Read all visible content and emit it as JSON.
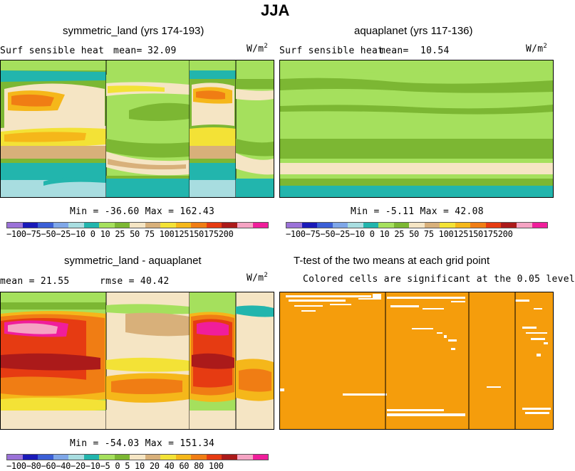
{
  "figure": {
    "season": "JJA"
  },
  "panels": {
    "top_left": {
      "title": "symmetric_land (yrs 174-193)",
      "variable": "Surf sensible heat",
      "mean_label": "mean=",
      "mean_value": "32.09",
      "units": "W/m",
      "units_exp": "2",
      "minmax": "Min = -36.60 Max = 162.43"
    },
    "top_right": {
      "title": "aquaplanet (yrs 117-136)",
      "variable": "Surf sensible heat",
      "mean_label": "mean=",
      "mean_value": "10.54",
      "units": "W/m",
      "units_exp": "2",
      "minmax": "Min = -5.11 Max = 42.08"
    },
    "bottom_left": {
      "title": "symmetric_land - aquaplanet",
      "mean_text": "mean = 21.55",
      "rmse_text": "rmse = 40.42",
      "units": "W/m",
      "units_exp": "2",
      "minmax": "Min = -54.03 Max = 151.34"
    },
    "bottom_right": {
      "title": "T-test of the two means at each grid point",
      "subtitle": "Colored cells are significant at the 0.05 level"
    }
  },
  "colorbars": {
    "field_colors": [
      "#9b72d8",
      "#1a1ab8",
      "#3b5fd6",
      "#7fa7e8",
      "#a8dde0",
      "#22b5ad",
      "#a5e05d",
      "#7cb733",
      "#f5e5c4",
      "#d8b07a",
      "#f3e236",
      "#f5b71a",
      "#f07d14",
      "#e63b12",
      "#ab1a1a",
      "#f5a3c3",
      "#f01e9b"
    ],
    "field_labels": [
      "-100",
      "-75",
      "-50",
      "-25",
      "-10",
      "0",
      "10",
      "25",
      "50",
      "75",
      "100",
      "125",
      "150",
      "175",
      "200"
    ],
    "field_labels_text": "−100−75−50−25−10 0  10  25  50  75 100125150175200",
    "diff_colors": [
      "#9b72d8",
      "#1a1ab8",
      "#3b5fd6",
      "#7fa7e8",
      "#a8dde0",
      "#22b5ad",
      "#a5e05d",
      "#7cb733",
      "#f5e5c4",
      "#d8b07a",
      "#f3e236",
      "#f5b71a",
      "#f07d14",
      "#e63b12",
      "#ab1a1a",
      "#f5a3c3",
      "#f01e9b"
    ],
    "diff_labels": [
      "-100",
      "-80",
      "-60",
      "-40",
      "-20",
      "-10",
      "-5",
      "0",
      "5",
      "10",
      "20",
      "40",
      "60",
      "80",
      "100"
    ],
    "diff_labels_text": "−100−80−60−40−20−10−5  0   5  10  20  40  60  80 100"
  },
  "colors": {
    "sig": "#f59d0c",
    "green_light": "#a5e05d",
    "green_dark": "#7cb733",
    "teal": "#22b5ad",
    "cyan_light": "#a8dde0",
    "beige": "#f5e5c4",
    "tan": "#d8b07a",
    "yellow": "#f3e236",
    "orange": "#f5b71a",
    "orange_dark": "#f07d14",
    "red": "#e63b12",
    "darkred": "#ab1a1a",
    "pink": "#f5a3c3",
    "magenta": "#f01e9b"
  },
  "chart_data": [
    {
      "type": "heatmap",
      "title": "symmetric_land (yrs 174-193)",
      "variable": "Surf sensible heat",
      "units": "W/m2",
      "mean": 32.09,
      "min": -36.6,
      "max": 162.43,
      "levels": [
        -100,
        -75,
        -50,
        -25,
        -10,
        0,
        10,
        25,
        50,
        75,
        100,
        125,
        150,
        175,
        200
      ]
    },
    {
      "type": "heatmap",
      "title": "aquaplanet (yrs 117-136)",
      "variable": "Surf sensible heat",
      "units": "W/m2",
      "mean": 10.54,
      "min": -5.11,
      "max": 42.08,
      "levels": [
        -100,
        -75,
        -50,
        -25,
        -10,
        0,
        10,
        25,
        50,
        75,
        100,
        125,
        150,
        175,
        200
      ]
    },
    {
      "type": "heatmap",
      "title": "symmetric_land - aquaplanet",
      "units": "W/m2",
      "mean": 21.55,
      "rmse": 40.42,
      "min": -54.03,
      "max": 151.34,
      "levels": [
        -100,
        -80,
        -60,
        -40,
        -20,
        -10,
        -5,
        0,
        5,
        10,
        20,
        40,
        60,
        80,
        100
      ]
    },
    {
      "type": "heatmap",
      "title": "T-test of the two means at each grid point",
      "subtitle": "Colored cells are significant at the 0.05 level"
    }
  ]
}
